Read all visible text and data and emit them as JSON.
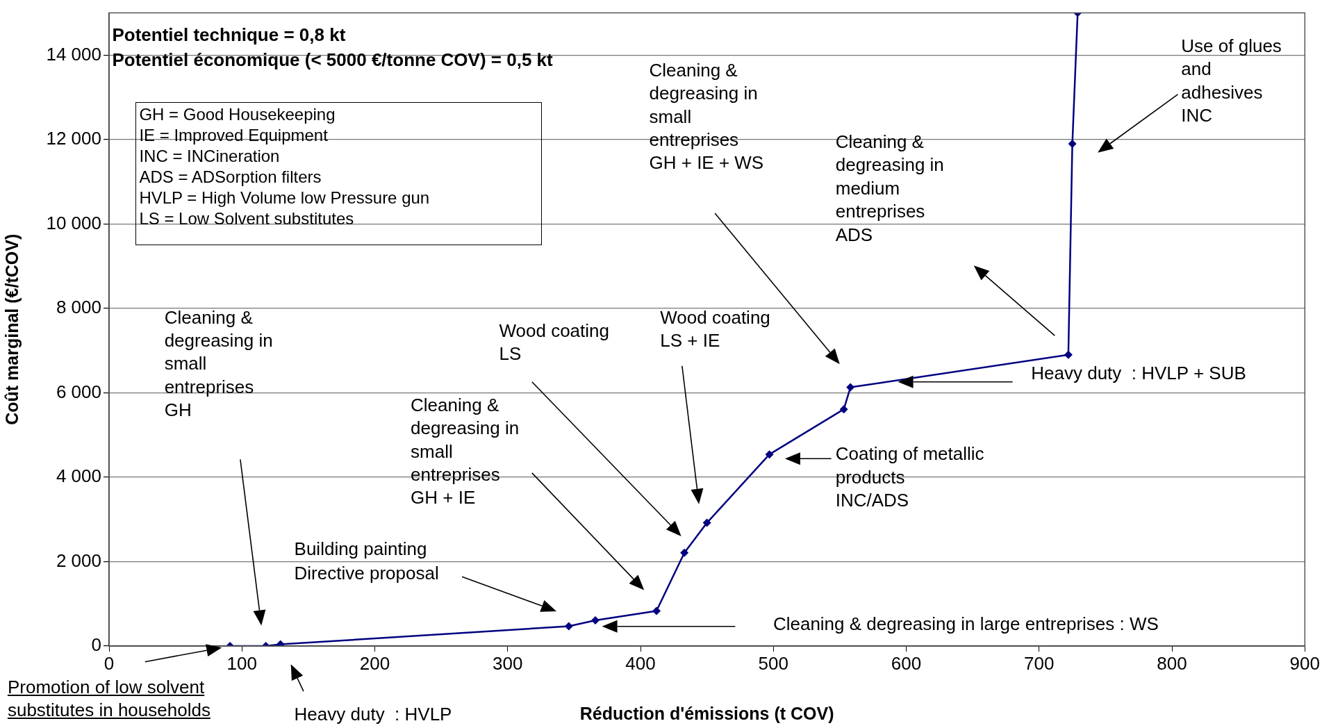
{
  "chart_data": {
    "type": "line",
    "xlabel": "Réduction d'émissions (t COV)",
    "ylabel": "Coût marginal (€/tCOV)",
    "x": [
      91,
      118,
      129,
      346,
      366,
      412,
      433,
      450,
      497,
      553,
      558,
      722,
      725,
      729
    ],
    "series": [
      {
        "color": "#000080",
        "values": [
          0,
          0,
          40,
          470,
          610,
          830,
          2210,
          2920,
          4540,
          5610,
          6130,
          6900,
          11900,
          15000
        ]
      }
    ],
    "xlim": [
      0,
      900
    ],
    "xticks": [
      0,
      100,
      200,
      300,
      400,
      500,
      600,
      700,
      800,
      900
    ],
    "ylim": [
      0,
      15000
    ],
    "yticks": [
      {
        "value": 0,
        "label": "0"
      },
      {
        "value": 2000,
        "label": "2 000"
      },
      {
        "value": 4000,
        "label": "4 000"
      },
      {
        "value": 6000,
        "label": "6 000"
      },
      {
        "value": 8000,
        "label": "8 000"
      },
      {
        "value": 10000,
        "label": "10 000"
      },
      {
        "value": 12000,
        "label": "12 000"
      },
      {
        "value": 14000,
        "label": "14 000"
      }
    ],
    "grid": "y",
    "legend": false,
    "marker": "diamond",
    "line_style": "solid",
    "annotations": [
      "Potentiel technique = 0,8 kt",
      "Potentiel économique (< 5000 €/tonne COV) = 0,5 kt",
      "GH = Good Housekeeping",
      "IE = Improved Equipment",
      "INC = INCineration",
      "ADS = ADSorption filters",
      "HVLP = High Volume low Pressure gun",
      "LS = Low Solvent substitutes",
      {
        "text": "Promotion of low solvent\nsubstitutes in households",
        "x": 91,
        "y": 0
      },
      "Cleaning &\ndegreasing in\nsmall\nentreprises\nGH",
      "Heavy duty  : HVLP",
      "Building painting\nDirective proposal",
      "Cleaning & degreasing in large entreprises : WS",
      "Cleaning &\ndegreasing in\nsmall\nentreprises\nGH + IE",
      "Wood coating\nLS",
      "Wood coating\nLS + IE",
      "Coating of metallic\nproducts\nINC/ADS",
      "Cleaning &\ndegreasing in\nsmall\nentreprises\nGH + IE + WS",
      "Cleaning &\ndegreasing in\nmedium\nentreprises\nADS",
      "Heavy duty  : HVLP + SUB",
      "Use of glues\nand\nadhesives\nINC"
    ]
  }
}
